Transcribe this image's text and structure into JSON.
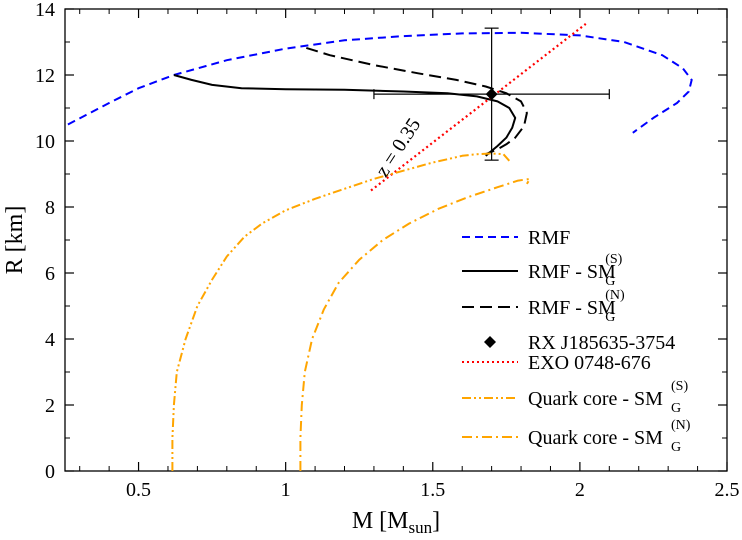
{
  "chart_data": {
    "type": "line",
    "xlabel": {
      "main": "M [M",
      "sub": "sun",
      "close": "]"
    },
    "ylabel": "R [km]",
    "xlim": [
      0.25,
      2.5
    ],
    "ylim": [
      0,
      14
    ],
    "xticks": [
      0.5,
      1,
      1.5,
      2,
      2.5
    ],
    "xtick_labels": [
      "0.5",
      "1",
      "1.5",
      "2",
      "2.5"
    ],
    "yticks": [
      0,
      2,
      4,
      6,
      8,
      10,
      12,
      14
    ],
    "ytick_labels": [
      "0",
      "2",
      "4",
      "6",
      "8",
      "10",
      "12",
      "14"
    ],
    "grid": false,
    "legend_position": "bottom-right",
    "series": [
      {
        "name": "RMF",
        "legend": {
          "main": "RMF"
        },
        "color": "#0000ff",
        "dash": "8,5",
        "x": [
          0.26,
          0.4,
          0.5,
          0.62,
          0.8,
          1.0,
          1.2,
          1.4,
          1.6,
          1.8,
          2.0,
          2.15,
          2.28,
          2.35,
          2.38,
          2.37,
          2.33,
          2.25,
          2.18
        ],
        "y": [
          10.5,
          11.15,
          11.6,
          12.0,
          12.45,
          12.8,
          13.05,
          13.18,
          13.26,
          13.28,
          13.2,
          13.0,
          12.6,
          12.2,
          11.85,
          11.5,
          11.15,
          10.7,
          10.25
        ]
      },
      {
        "name": "RMF - SM_G^(S)",
        "legend": {
          "main": "RMF - SM",
          "sub": "G",
          "sup": "(S)"
        },
        "color": "#000000",
        "dash": "",
        "x": [
          0.62,
          0.68,
          0.75,
          0.85,
          1.0,
          1.2,
          1.4,
          1.55,
          1.65,
          1.72,
          1.76,
          1.78,
          1.77,
          1.75,
          1.72,
          1.68
        ],
        "y": [
          12.0,
          11.85,
          11.7,
          11.6,
          11.57,
          11.55,
          11.5,
          11.45,
          11.35,
          11.2,
          11.0,
          10.7,
          10.4,
          10.1,
          9.85,
          9.55
        ]
      },
      {
        "name": "RMF - SM_G^(N)",
        "legend": {
          "main": "RMF - SM",
          "sub": "G",
          "sup": "(N)"
        },
        "color": "#000000",
        "dash": "12,6",
        "x": [
          1.07,
          1.15,
          1.3,
          1.45,
          1.58,
          1.68,
          1.75,
          1.8,
          1.82,
          1.81,
          1.78,
          1.75,
          1.72,
          1.68
        ],
        "y": [
          12.82,
          12.6,
          12.3,
          12.05,
          11.85,
          11.65,
          11.45,
          11.2,
          10.85,
          10.45,
          10.1,
          9.9,
          9.75,
          9.6
        ]
      },
      {
        "name": "EXO 0748-676",
        "legend": {
          "main": "EXO 0748-676"
        },
        "color": "#ff0000",
        "dash": "2,3",
        "x": [
          1.29,
          2.02
        ],
        "y": [
          8.5,
          13.55
        ]
      },
      {
        "name": "Quark core - SM_G^(S)",
        "legend": {
          "main": "Quark core - SM",
          "sub": "G",
          "sup": "(S)"
        },
        "color": "#ffa500",
        "dash": "9,3,2,3,2,3",
        "x": [
          0.615,
          0.615,
          0.62,
          0.63,
          0.66,
          0.7,
          0.75,
          0.8,
          0.86,
          0.92,
          1.0,
          1.1,
          1.2,
          1.3,
          1.4,
          1.5,
          1.55,
          1.6,
          1.65,
          1.7,
          1.74,
          1.76
        ],
        "y": [
          0.0,
          1.0,
          2.0,
          3.0,
          4.0,
          5.0,
          5.8,
          6.5,
          7.1,
          7.5,
          7.9,
          8.25,
          8.55,
          8.85,
          9.1,
          9.35,
          9.45,
          9.55,
          9.6,
          9.62,
          9.6,
          9.4
        ]
      },
      {
        "name": "Quark core - SM_G^(N)",
        "legend": {
          "main": "Quark core - SM",
          "sub": "G",
          "sup": "(N)"
        },
        "color": "#ffa500",
        "dash": "10,4,2,4",
        "x": [
          1.05,
          1.05,
          1.055,
          1.065,
          1.09,
          1.13,
          1.18,
          1.25,
          1.33,
          1.42,
          1.52,
          1.62,
          1.72,
          1.79,
          1.83,
          1.82
        ],
        "y": [
          0.0,
          1.0,
          2.0,
          3.0,
          4.0,
          4.9,
          5.7,
          6.4,
          7.0,
          7.5,
          7.95,
          8.3,
          8.6,
          8.8,
          8.85,
          8.7
        ]
      }
    ],
    "points": [
      {
        "name": "RX J185635-3754",
        "legend": {
          "main": "RX J185635-3754"
        },
        "marker": "diamond",
        "color": "#000000",
        "x": 1.7,
        "y": 11.42,
        "xerr": [
          0.4,
          0.4
        ],
        "yerr": [
          2.0,
          2.0
        ]
      }
    ],
    "annotations": [
      {
        "text": "z = 0.35",
        "x": 1.4,
        "y": 9.7,
        "rotation_deg": -57
      }
    ]
  }
}
